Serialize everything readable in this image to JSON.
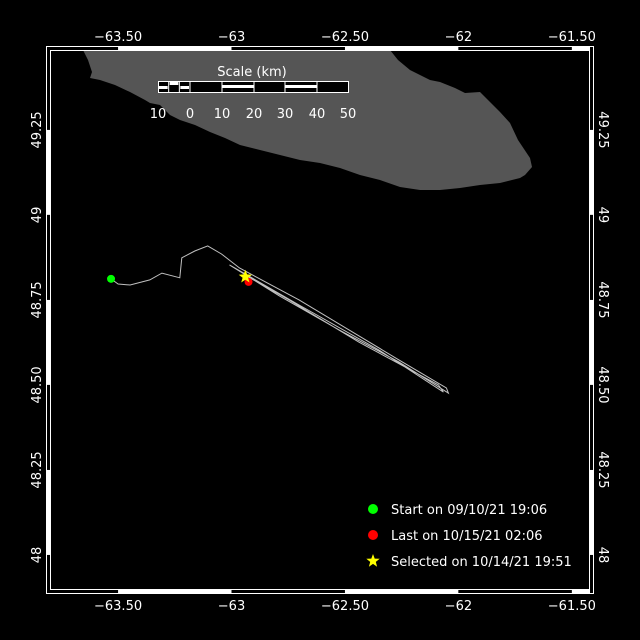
{
  "map": {
    "lon_range": [
      -63.8,
      -61.42
    ],
    "lat_range": [
      47.897,
      49.485
    ],
    "lon_ticks": [
      {
        "value": -63.5,
        "label": "−63.50"
      },
      {
        "value": -63.0,
        "label": "−63"
      },
      {
        "value": -62.5,
        "label": "−62.50"
      },
      {
        "value": -62.0,
        "label": "−62"
      },
      {
        "value": -61.5,
        "label": "−61.50"
      }
    ],
    "lat_ticks": [
      {
        "value": 49.25,
        "label": "49.25"
      },
      {
        "value": 49.0,
        "label": "49"
      },
      {
        "value": 48.75,
        "label": "48.75"
      },
      {
        "value": 48.5,
        "label": "48.50"
      },
      {
        "value": 48.25,
        "label": "48.25"
      },
      {
        "value": 48.0,
        "label": "48"
      }
    ],
    "colors": {
      "background": "#000000",
      "land": "#555555",
      "track": "#c0c0c0",
      "start": "#00ff00",
      "last": "#ff0000",
      "selected": "#ffff00",
      "frame": "#ffffff"
    }
  },
  "scale_bar": {
    "title": "Scale (km)",
    "labels": [
      "10",
      "0",
      "10",
      "20",
      "30",
      "40",
      "50"
    ]
  },
  "track": [
    [
      -63.531,
      48.812
    ],
    [
      -63.5,
      48.797
    ],
    [
      -63.447,
      48.794
    ],
    [
      -63.36,
      48.809
    ],
    [
      -63.307,
      48.829
    ],
    [
      -63.228,
      48.815
    ],
    [
      -63.219,
      48.874
    ],
    [
      -63.162,
      48.894
    ],
    [
      -63.105,
      48.909
    ],
    [
      -63.044,
      48.885
    ],
    [
      -62.965,
      48.844
    ],
    [
      -62.702,
      48.75
    ],
    [
      -62.482,
      48.662
    ],
    [
      -62.263,
      48.574
    ],
    [
      -62.053,
      48.491
    ],
    [
      -62.044,
      48.476
    ],
    [
      -62.263,
      48.568
    ],
    [
      -62.526,
      48.662
    ],
    [
      -62.789,
      48.762
    ],
    [
      -63.009,
      48.853
    ],
    [
      -62.702,
      48.735
    ],
    [
      -62.351,
      48.603
    ],
    [
      -62.066,
      48.479
    ],
    [
      -62.088,
      48.5
    ],
    [
      -62.439,
      48.626
    ],
    [
      -62.746,
      48.75
    ],
    [
      -62.943,
      48.824
    ],
    [
      -62.925,
      48.803
    ]
  ],
  "markers": {
    "start": [
      -63.531,
      48.812
    ],
    "last": [
      -62.925,
      48.803
    ],
    "selected": [
      -62.939,
      48.818
    ]
  },
  "legend": [
    {
      "icon": "green-circle",
      "label": "Start on 09/10/21 19:06"
    },
    {
      "icon": "red-circle",
      "label": "Last on 10/15/21 02:06"
    },
    {
      "icon": "yellow-star",
      "label": "Selected on 10/14/21 19:51"
    }
  ]
}
